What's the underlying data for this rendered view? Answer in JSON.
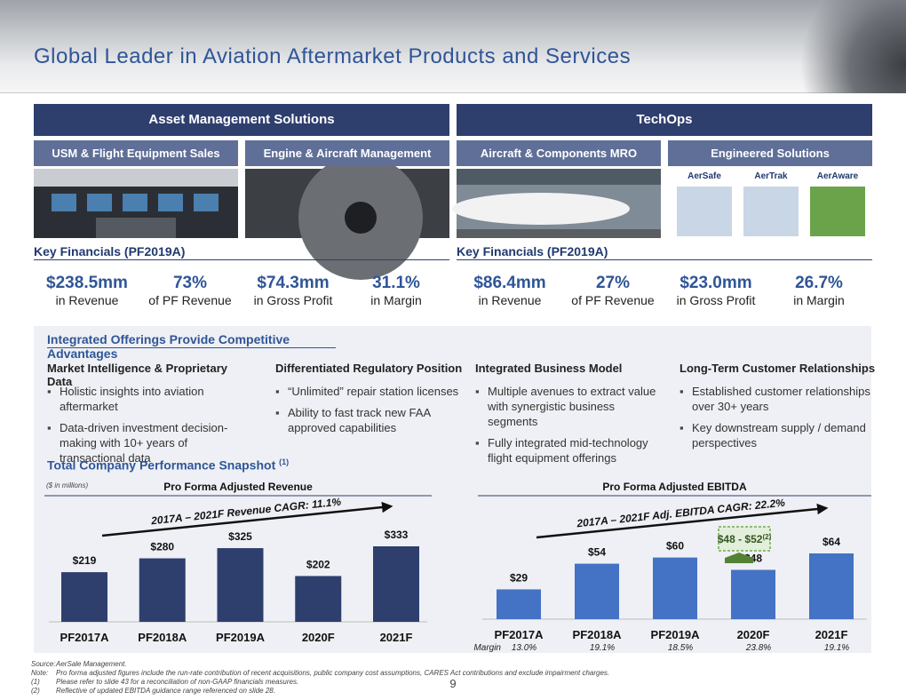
{
  "header": {
    "title": "Global Leader in Aviation Aftermarket Products and Services"
  },
  "segments": [
    {
      "name": "Asset Management Solutions",
      "units": [
        "USM & Flight Equipment Sales",
        "Engine & Aircraft Management"
      ],
      "key_financials_title": "Key Financials (PF2019A)",
      "metrics": [
        {
          "value": "$238.5mm",
          "label": "in Revenue"
        },
        {
          "value": "73%",
          "label": "of PF Revenue"
        },
        {
          "value": "$74.3mm",
          "label": "in Gross Profit"
        },
        {
          "value": "31.1%",
          "label": "in Margin"
        }
      ]
    },
    {
      "name": "TechOps",
      "units": [
        "Aircraft & Components MRO",
        "Engineered Solutions"
      ],
      "key_financials_title": "Key Financials (PF2019A)",
      "metrics": [
        {
          "value": "$86.4mm",
          "label": "in Revenue"
        },
        {
          "value": "27%",
          "label": "of PF Revenue"
        },
        {
          "value": "$23.0mm",
          "label": "in Gross Profit"
        },
        {
          "value": "26.7%",
          "label": "in Margin"
        }
      ]
    }
  ],
  "engineered_logos": [
    "AerSafe",
    "AerTrak",
    "AerAware"
  ],
  "offerings": {
    "title": "Integrated Offerings Provide Competitive Advantages",
    "columns": [
      {
        "heading": "Market Intelligence & Proprietary Data",
        "bullets": [
          "Holistic insights into aviation aftermarket",
          "Data-driven investment decision-making with 10+ years of transactional data"
        ]
      },
      {
        "heading": "Differentiated Regulatory Position",
        "bullets": [
          "“Unlimited” repair station licenses",
          "Ability to fast track new FAA approved capabilities"
        ]
      },
      {
        "heading": "Integrated Business Model",
        "bullets": [
          "Multiple avenues to extract value with synergistic business segments",
          "Fully integrated mid-technology flight equipment offerings"
        ]
      },
      {
        "heading": "Long-Term Customer Relationships",
        "bullets": [
          "Established customer relationships over 30+ years",
          "Key downstream supply / demand perspectives"
        ]
      }
    ]
  },
  "snapshot": {
    "title": "Total Company Performance Snapshot",
    "note": "(1)",
    "units": "($ in millions)"
  },
  "chart_data": [
    {
      "type": "bar",
      "title": "Pro Forma Adjusted Revenue",
      "categories": [
        "PF2017A",
        "PF2018A",
        "PF2019A",
        "2020F",
        "2021F"
      ],
      "values": [
        219,
        280,
        325,
        202,
        333
      ],
      "value_labels": [
        "$219",
        "$280",
        "$325",
        "$202",
        "$333"
      ],
      "color": "#2e3f6e",
      "annotation": "2017A – 2021F Revenue CAGR: 11.1%"
    },
    {
      "type": "bar",
      "title": "Pro Forma Adjusted EBITDA",
      "categories": [
        "PF2017A",
        "PF2018A",
        "PF2019A",
        "2020F",
        "2021F"
      ],
      "values": [
        29,
        54,
        60,
        48,
        64
      ],
      "value_labels": [
        "$29",
        "$54",
        "$60",
        "$48",
        "$64"
      ],
      "color": "#4472c4",
      "annotation": "2017A – 2021F Adj. EBITDA CAGR: 22.2%",
      "margin_label": "Margin",
      "margins": [
        "13.0%",
        "19.1%",
        "18.5%",
        "23.8%",
        "19.1%"
      ],
      "callout": {
        "text": "$48 - $52",
        "note": "(2)"
      }
    }
  ],
  "footnotes": [
    {
      "mark": "Source:",
      "text": "AerSale Management."
    },
    {
      "mark": "Note:",
      "text": "Pro forma adjusted figures include the run-rate contribution of recent acquisitions, public company cost assumptions, CARES Act contributions and exclude impairment charges."
    },
    {
      "mark": "(1)",
      "text": "Please refer to slide 43 for a reconciliation of non-GAAP financials measures."
    },
    {
      "mark": "(2)",
      "text": "Reflective of updated EBITDA guidance range referenced on slide 28."
    }
  ],
  "page_number": "9"
}
